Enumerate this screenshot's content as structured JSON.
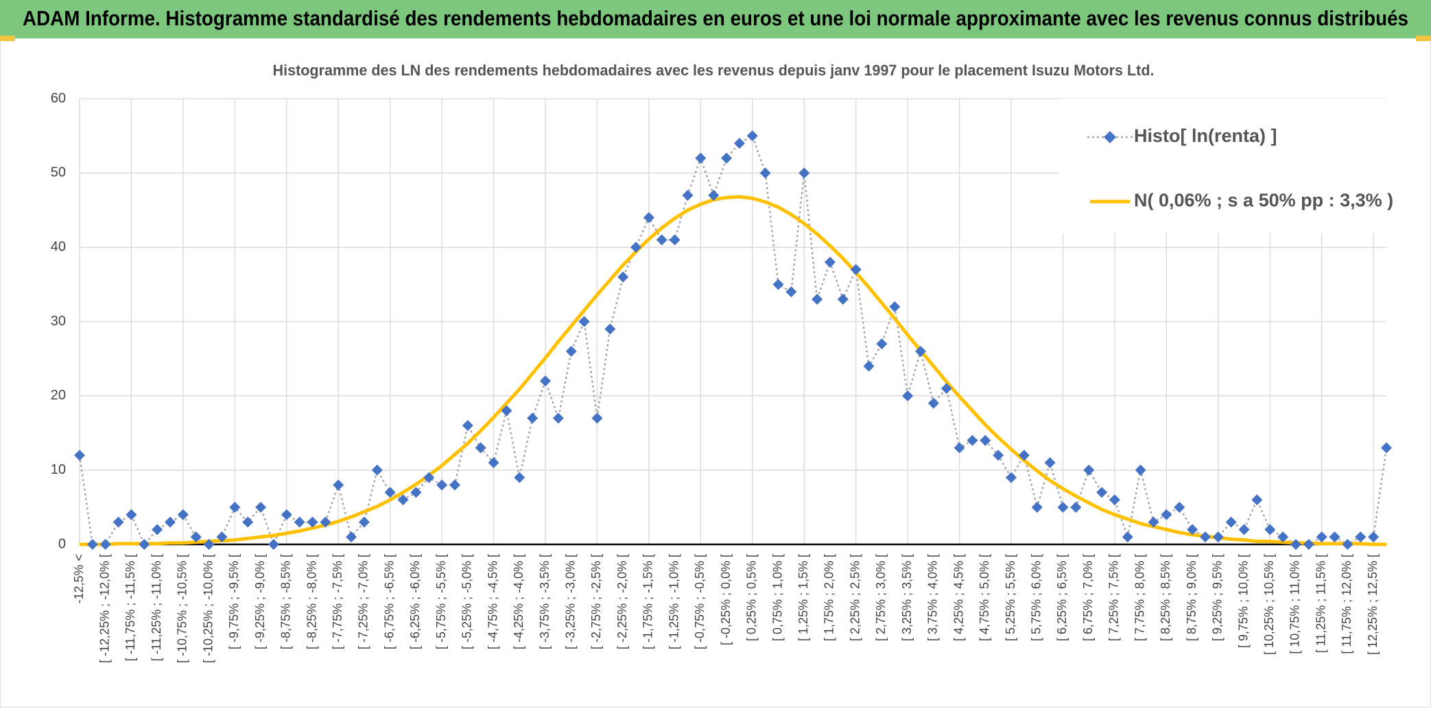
{
  "header": {
    "title": "ADAM Informe. Histogramme standardisé des rendements hebdomadaires en euros et une loi normale approximante avec les revenus connus distribués"
  },
  "chart_data": {
    "type": "line",
    "title": "Histogramme des LN des rendements hebdomadaires avec les revenus depuis janv 1997 pour le placement Isuzu Motors Ltd.",
    "categories": [
      "-12,5% <",
      null,
      "[ -12,25% ; -12,0% [",
      null,
      "[ -11,75% ; -11,5% [",
      null,
      "[ -11,25% ; -11,0% [",
      null,
      "[ -10,75% ; -10,5% [",
      null,
      "[ -10,25% ; -10,0% [",
      null,
      "[ -9,75% ; -9,5% [",
      null,
      "[ -9,25% ; -9,0% [",
      null,
      "[ -8,75% ; -8,5% [",
      null,
      "[ -8,25% ; -8,0% [",
      null,
      "[ -7,75% ; -7,5% [",
      null,
      "[ -7,25% ; -7,0% [",
      null,
      "[ -6,75% ; -6,5% [",
      null,
      "[ -6,25% ; -6,0% [",
      null,
      "[ -5,75% ; -5,5% [",
      null,
      "[ -5,25% ; -5,0% [",
      null,
      "[ -4,75% ; -4,5% [",
      null,
      "[ -4,25% ; -4,0% [",
      null,
      "[ -3,75% ; -3,5% [",
      null,
      "[ -3,25% ; -3,0% [",
      null,
      "[ -2,75% ; -2,5% [",
      null,
      "[ -2,25% ; -2,0% [",
      null,
      "[ -1,75% ; -1,5% [",
      null,
      "[ -1,25% ; -1,0% [",
      null,
      "[ -0,75% ; -0,5% [",
      null,
      "[ -0,25% ; 0,0% [",
      null,
      "[ 0,25% ; 0,5% [",
      null,
      "[ 0,75% ; 1,0% [",
      null,
      "[ 1,25% ; 1,5% [",
      null,
      "[ 1,75% ; 2,0% [",
      null,
      "[ 2,25% ; 2,5% [",
      null,
      "[ 2,75% ; 3,0% [",
      null,
      "[ 3,25% ; 3,5% [",
      null,
      "[ 3,75% ; 4,0% [",
      null,
      "[ 4,25% ; 4,5% [",
      null,
      "[ 4,75% ; 5,0% [",
      null,
      "[ 5,25% ; 5,5% [",
      null,
      "[ 5,75% ; 6,0% [",
      null,
      "[ 6,25% ; 6,5% [",
      null,
      "[ 6,75% ; 7,0% [",
      null,
      "[ 7,25% ; 7,5% [",
      null,
      "[ 7,75% ; 8,0% [",
      null,
      "[ 8,25% ; 8,5% [",
      null,
      "[ 8,75% ; 9,0% [",
      null,
      "[ 9,25% ; 9,5% [",
      null,
      "[ 9,75% ; 10,0% [",
      null,
      "[ 10,25% ; 10,5% [",
      null,
      "[ 10,75% ; 11,0% [",
      null,
      "[ 11,25% ; 11,5% [",
      null,
      "[ 11,75% ; 12,0% [",
      null,
      "[ 12,25% ; 12,5% [",
      null
    ],
    "series": [
      {
        "name": "Histo[ ln(renta) ]",
        "color": "#4472c4",
        "values": [
          12,
          0,
          0,
          3,
          4,
          0,
          2,
          3,
          4,
          1,
          0,
          1,
          5,
          3,
          5,
          0,
          4,
          3,
          3,
          3,
          8,
          1,
          3,
          10,
          7,
          6,
          7,
          9,
          8,
          8,
          16,
          13,
          11,
          18,
          9,
          17,
          22,
          17,
          26,
          30,
          17,
          29,
          36,
          40,
          44,
          41,
          41,
          47,
          52,
          47,
          52,
          54,
          55,
          50,
          35,
          34,
          50,
          33,
          38,
          33,
          37,
          24,
          27,
          32,
          20,
          26,
          19,
          21,
          13,
          14,
          14,
          12,
          9,
          12,
          5,
          11,
          5,
          5,
          10,
          7,
          6,
          1,
          10,
          3,
          4,
          5,
          2,
          1,
          1,
          3,
          2,
          6,
          2,
          1,
          0,
          0,
          1,
          1,
          0,
          1,
          1,
          13
        ]
      },
      {
        "name": "N( 0,06% ; s a 50% pp : 3,3% )",
        "color": "#ffc000",
        "values": [
          0,
          0,
          0,
          0.1,
          0.1,
          0.1,
          0.1,
          0.2,
          0.2,
          0.3,
          0.4,
          0.5,
          0.6,
          0.8,
          1.0,
          1.2,
          1.5,
          1.8,
          2.2,
          2.6,
          3.1,
          3.7,
          4.4,
          5.1,
          6.0,
          7.0,
          8.1,
          9.3,
          10.6,
          12.1,
          13.6,
          15.3,
          17.1,
          19.0,
          20.9,
          23.0,
          25.1,
          27.3,
          29.4,
          31.5,
          33.6,
          35.6,
          37.6,
          39.4,
          41.1,
          42.6,
          43.9,
          45.0,
          45.8,
          46.4,
          46.7,
          46.8,
          46.6,
          46.1,
          45.4,
          44.4,
          43.2,
          41.8,
          40.2,
          38.5,
          36.6,
          34.6,
          32.5,
          30.4,
          28.2,
          26.1,
          24.0,
          21.9,
          19.9,
          18.0,
          16.1,
          14.4,
          12.8,
          11.3,
          9.9,
          8.6,
          7.5,
          6.5,
          5.6,
          4.7,
          4.0,
          3.4,
          2.8,
          2.4,
          2.0,
          1.6,
          1.3,
          1.1,
          0.9,
          0.7,
          0.6,
          0.4,
          0.4,
          0.3,
          0.2,
          0.2,
          0.1,
          0.1,
          0.1,
          0.1,
          0,
          0
        ]
      }
    ],
    "ylim": [
      0,
      60
    ],
    "yticks": [
      0,
      10,
      20,
      30,
      40,
      50,
      60
    ],
    "grid": true,
    "legend": "top-right"
  }
}
